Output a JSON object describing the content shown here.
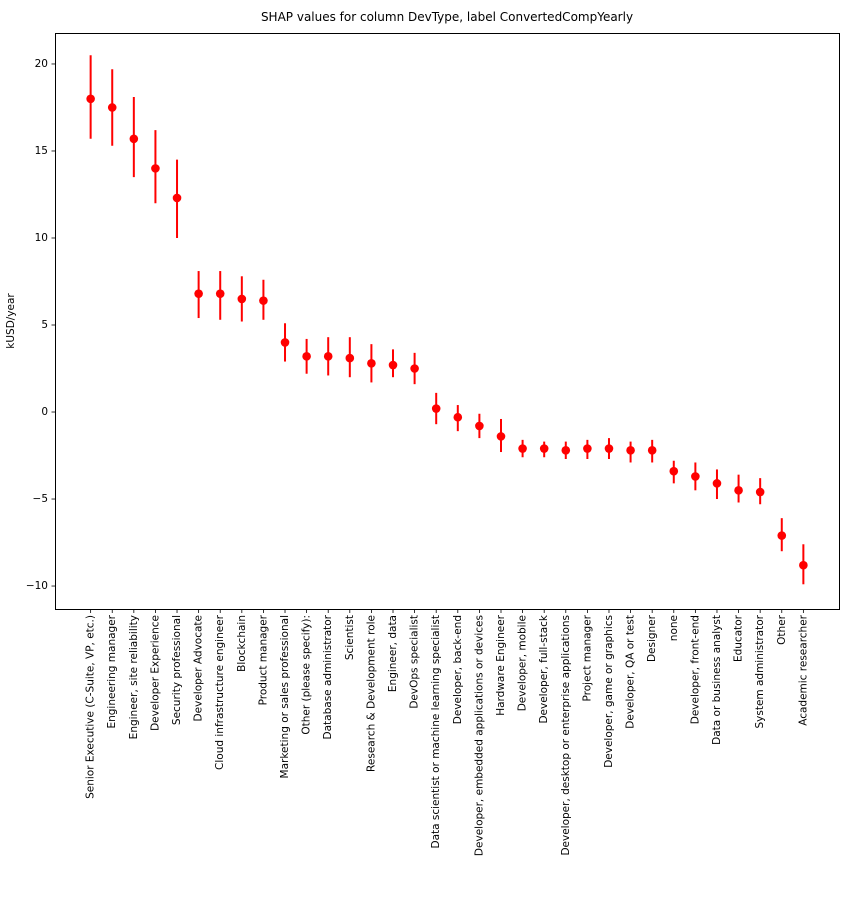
{
  "chart_data": {
    "type": "scatter",
    "title": "SHAP values for column DevType, label ConvertedCompYearly",
    "xlabel": "",
    "ylabel": "kUSD/year",
    "grid": false,
    "legend_position": "none",
    "marker_color": "#ff0000",
    "marker_shape": "circle",
    "error_bars": true,
    "ylim": [
      -11.32,
      21.78
    ],
    "xlim": [
      -1.65,
      34.65
    ],
    "ytick_values": [
      20,
      15,
      10,
      5,
      0,
      -5,
      -10
    ],
    "ytick_labels": [
      "20",
      "15",
      "10",
      "5",
      "0",
      "−5",
      "−10"
    ],
    "categories": [
      "Senior Executive (C-Suite, VP, etc.)",
      "Engineering manager",
      "Engineer, site reliability",
      "Developer Experience",
      "Security professional",
      "Developer Advocate",
      "Cloud infrastructure engineer",
      "Blockchain",
      "Product manager",
      "Marketing or sales professional",
      "Other (please specify):",
      "Database administrator",
      "Scientist",
      "Research & Development role",
      "Engineer, data",
      "DevOps specialist",
      "Data scientist or machine learning specialist",
      "Developer, back-end",
      "Developer, embedded applications or devices",
      "Hardware Engineer",
      "Developer, mobile",
      "Developer, full-stack",
      "Developer, desktop or enterprise applications",
      "Project manager",
      "Developer, game or graphics",
      "Developer, QA or test",
      "Designer",
      "none",
      "Developer, front-end",
      "Data or business analyst",
      "Educator",
      "System administrator",
      "Other",
      "Academic researcher"
    ],
    "values": [
      18.0,
      17.5,
      15.7,
      14.0,
      12.3,
      6.8,
      6.8,
      6.5,
      6.4,
      4.0,
      3.2,
      3.2,
      3.1,
      2.8,
      2.7,
      2.5,
      0.2,
      -0.3,
      -0.8,
      -1.4,
      -2.1,
      -2.1,
      -2.2,
      -2.1,
      -2.1,
      -2.2,
      -2.2,
      -3.4,
      -3.7,
      -4.1,
      -4.5,
      -4.6,
      -7.1,
      -8.8
    ],
    "error_low": [
      15.7,
      15.3,
      13.5,
      12.0,
      10.0,
      5.4,
      5.3,
      5.2,
      5.3,
      2.9,
      2.2,
      2.1,
      2.0,
      1.7,
      2.0,
      1.6,
      -0.7,
      -1.1,
      -1.5,
      -2.3,
      -2.6,
      -2.6,
      -2.7,
      -2.7,
      -2.7,
      -2.9,
      -2.9,
      -4.1,
      -4.5,
      -5.0,
      -5.2,
      -5.3,
      -8.0,
      -9.9
    ],
    "error_high": [
      20.5,
      19.7,
      18.1,
      16.2,
      14.5,
      8.1,
      8.1,
      7.8,
      7.6,
      5.1,
      4.2,
      4.3,
      4.3,
      3.9,
      3.6,
      3.4,
      1.1,
      0.4,
      -0.1,
      -0.4,
      -1.6,
      -1.7,
      -1.7,
      -1.6,
      -1.5,
      -1.7,
      -1.6,
      -2.8,
      -2.9,
      -3.3,
      -3.6,
      -3.8,
      -6.1,
      -7.6
    ]
  }
}
